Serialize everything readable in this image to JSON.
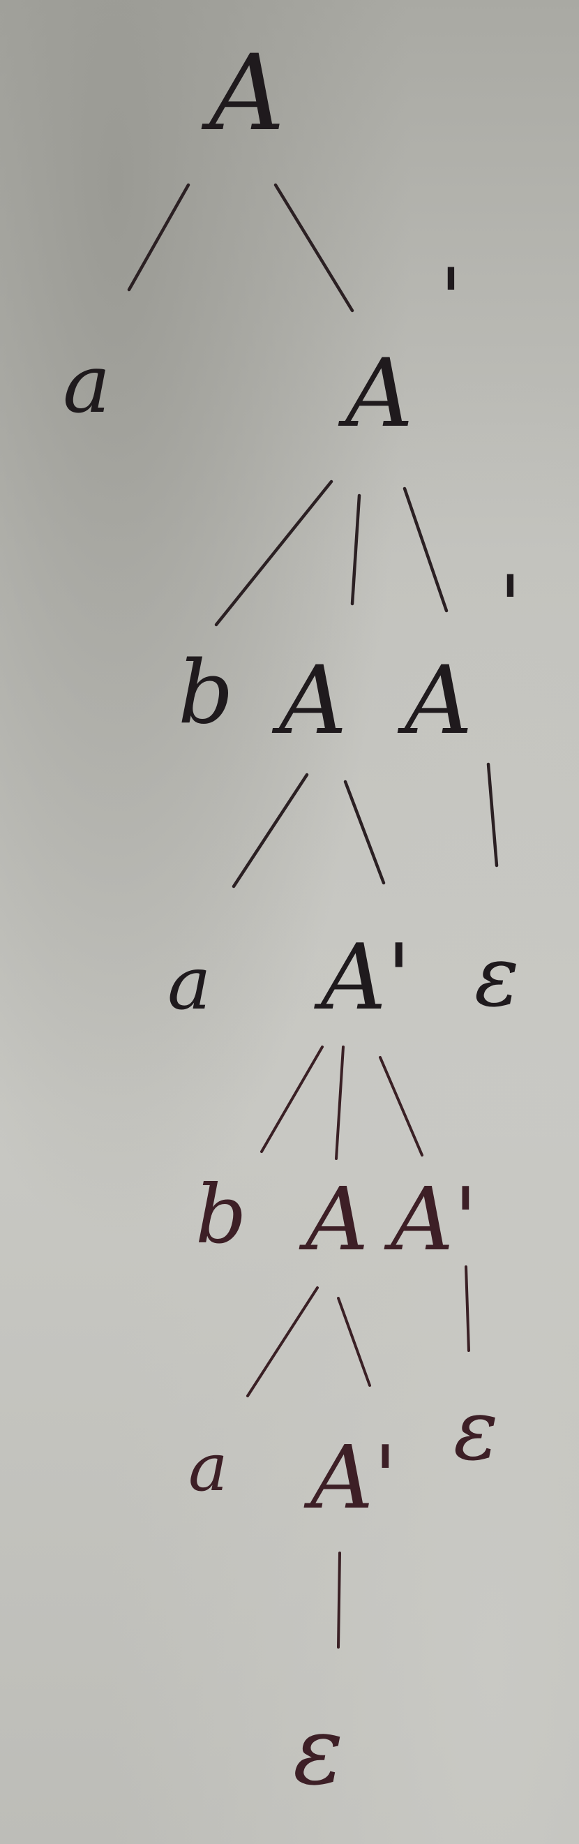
{
  "tree": {
    "root": "A",
    "level1": {
      "left": "a",
      "right": "A",
      "prime": "'"
    },
    "level2": {
      "left": "b",
      "middle": "A",
      "right": "A",
      "prime": "'"
    },
    "level3": {
      "left": "a",
      "middle": "A'",
      "right": "ε"
    },
    "level4": {
      "left": "b",
      "middle": "A",
      "right": "A'"
    },
    "level5": {
      "left": "a",
      "middle": "A'",
      "right": "ε"
    },
    "level6": {
      "leaf": "ε"
    }
  },
  "colors": {
    "ink_top": "#1f1a1d",
    "ink_bottom": "#3d1f26",
    "paper": "#c2c2bd"
  }
}
